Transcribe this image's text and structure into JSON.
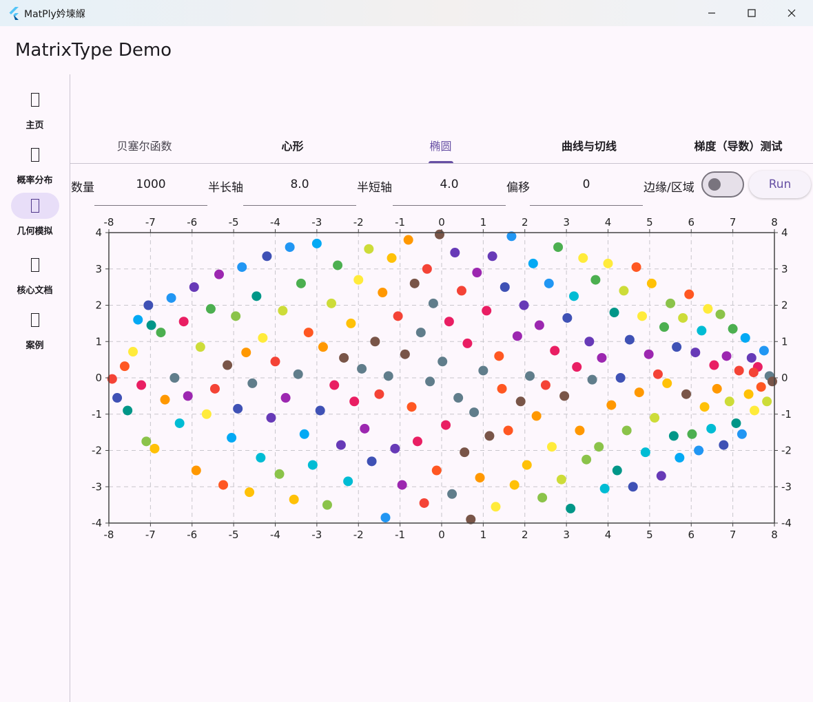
{
  "window": {
    "title": "MatPly妗堜緥",
    "icon": "flutter-logo-icon",
    "controls": [
      "minimize-icon",
      "maximize-icon",
      "close-icon"
    ]
  },
  "app": {
    "title": "MatrixType Demo"
  },
  "rail": {
    "items": [
      {
        "label": "主页",
        "icon": "home-icon",
        "active": false
      },
      {
        "label": "概率分布",
        "icon": "distribution-icon",
        "active": false
      },
      {
        "label": "几何模拟",
        "icon": "geometry-icon",
        "active": true
      },
      {
        "label": "核心文档",
        "icon": "docs-icon",
        "active": false
      },
      {
        "label": "案例",
        "icon": "examples-icon",
        "active": false
      }
    ]
  },
  "tabs": [
    {
      "label": "贝塞尔函数",
      "active": false
    },
    {
      "label": "心形",
      "active": false
    },
    {
      "label": "椭圆",
      "active": true
    },
    {
      "label": "曲线与切线",
      "active": false
    },
    {
      "label": "梯度（导数）测试",
      "active": false
    }
  ],
  "form": {
    "count_label": "数量",
    "count_value": "1000",
    "semi_major_label": "半长轴",
    "semi_major_value": "8.0",
    "semi_minor_label": "半短轴",
    "semi_minor_value": "4.0",
    "offset_label": "偏移",
    "offset_value": "0",
    "edge_label": "边缘/区域",
    "edge_toggle_on": false,
    "run_label": "Run"
  },
  "colors": {
    "accent": "#6750a4",
    "point_palette": [
      "#f44336",
      "#e91e63",
      "#9c27b0",
      "#673ab7",
      "#3f51b5",
      "#2196f3",
      "#03a9f4",
      "#00bcd4",
      "#009688",
      "#4caf50",
      "#8bc34a",
      "#cddc39",
      "#ffeb3b",
      "#ffc107",
      "#ff9800",
      "#ff5722",
      "#795548",
      "#607d8b"
    ]
  },
  "chart_data": {
    "type": "scatter",
    "xlim": [
      -8,
      8
    ],
    "ylim": [
      -4,
      4
    ],
    "x_ticks": [
      -8,
      -7,
      -6,
      -5,
      -4,
      -3,
      -2,
      -1,
      0,
      1,
      2,
      3,
      4,
      5,
      6,
      7,
      8
    ],
    "y_ticks": [
      4,
      3,
      2,
      1,
      0,
      -1,
      -2,
      -3,
      -4
    ],
    "grid": true,
    "grid_style": "dashed",
    "point_count": 1000,
    "shape": "filled ellipse, semi-axes 8 and 4, centered at origin",
    "points": [
      {
        "x": -7.92,
        "y": -0.03,
        "c": "#f44336"
      },
      {
        "x": -7.8,
        "y": -0.55,
        "c": "#3f51b5"
      },
      {
        "x": -7.62,
        "y": 0.32,
        "c": "#ff5722"
      },
      {
        "x": -7.55,
        "y": -0.9,
        "c": "#009688"
      },
      {
        "x": -7.42,
        "y": 0.72,
        "c": "#ffeb3b"
      },
      {
        "x": -7.3,
        "y": 1.6,
        "c": "#03a9f4"
      },
      {
        "x": -7.22,
        "y": -0.2,
        "c": "#e91e63"
      },
      {
        "x": -7.1,
        "y": -1.75,
        "c": "#8bc34a"
      },
      {
        "x": -7.05,
        "y": 2.0,
        "c": "#3f51b5"
      },
      {
        "x": -6.98,
        "y": 1.45,
        "c": "#009688"
      },
      {
        "x": -6.9,
        "y": -1.95,
        "c": "#ffc107"
      },
      {
        "x": -6.75,
        "y": 1.25,
        "c": "#4caf50"
      },
      {
        "x": -6.65,
        "y": -0.6,
        "c": "#ff9800"
      },
      {
        "x": -6.5,
        "y": 2.2,
        "c": "#2196f3"
      },
      {
        "x": -6.42,
        "y": 0.0,
        "c": "#607d8b"
      },
      {
        "x": -6.3,
        "y": -1.25,
        "c": "#00bcd4"
      },
      {
        "x": -6.2,
        "y": 1.55,
        "c": "#e91e63"
      },
      {
        "x": -6.1,
        "y": -0.5,
        "c": "#9c27b0"
      },
      {
        "x": -5.95,
        "y": 2.5,
        "c": "#673ab7"
      },
      {
        "x": -5.9,
        "y": -2.55,
        "c": "#ff9800"
      },
      {
        "x": -5.8,
        "y": 0.85,
        "c": "#cddc39"
      },
      {
        "x": -5.65,
        "y": -1.0,
        "c": "#ffeb3b"
      },
      {
        "x": -5.55,
        "y": 1.9,
        "c": "#4caf50"
      },
      {
        "x": -5.45,
        "y": -0.3,
        "c": "#f44336"
      },
      {
        "x": -5.35,
        "y": 2.85,
        "c": "#9c27b0"
      },
      {
        "x": -5.25,
        "y": -2.95,
        "c": "#ff5722"
      },
      {
        "x": -5.15,
        "y": 0.35,
        "c": "#795548"
      },
      {
        "x": -5.05,
        "y": -1.65,
        "c": "#03a9f4"
      },
      {
        "x": -4.95,
        "y": 1.7,
        "c": "#8bc34a"
      },
      {
        "x": -4.9,
        "y": -0.85,
        "c": "#3f51b5"
      },
      {
        "x": -4.8,
        "y": 3.05,
        "c": "#2196f3"
      },
      {
        "x": -4.7,
        "y": 0.7,
        "c": "#ff9800"
      },
      {
        "x": -4.62,
        "y": -3.15,
        "c": "#ffc107"
      },
      {
        "x": -4.55,
        "y": -0.15,
        "c": "#607d8b"
      },
      {
        "x": -4.45,
        "y": 2.25,
        "c": "#009688"
      },
      {
        "x": -4.35,
        "y": -2.2,
        "c": "#00bcd4"
      },
      {
        "x": -4.3,
        "y": 1.1,
        "c": "#ffeb3b"
      },
      {
        "x": -4.2,
        "y": 3.35,
        "c": "#3f51b5"
      },
      {
        "x": -4.1,
        "y": -1.1,
        "c": "#673ab7"
      },
      {
        "x": -4.0,
        "y": 0.45,
        "c": "#f44336"
      },
      {
        "x": -3.9,
        "y": -2.65,
        "c": "#8bc34a"
      },
      {
        "x": -3.82,
        "y": 1.85,
        "c": "#cddc39"
      },
      {
        "x": -3.75,
        "y": -0.55,
        "c": "#9c27b0"
      },
      {
        "x": -3.65,
        "y": 3.6,
        "c": "#2196f3"
      },
      {
        "x": -3.55,
        "y": -3.35,
        "c": "#ffc107"
      },
      {
        "x": -3.45,
        "y": 0.1,
        "c": "#607d8b"
      },
      {
        "x": -3.38,
        "y": 2.6,
        "c": "#4caf50"
      },
      {
        "x": -3.3,
        "y": -1.55,
        "c": "#03a9f4"
      },
      {
        "x": -3.2,
        "y": 1.25,
        "c": "#ff5722"
      },
      {
        "x": -3.1,
        "y": -2.4,
        "c": "#00bcd4"
      },
      {
        "x": -3.0,
        "y": 3.7,
        "c": "#03a9f4"
      },
      {
        "x": -2.92,
        "y": -0.9,
        "c": "#3f51b5"
      },
      {
        "x": -2.85,
        "y": 0.85,
        "c": "#ff9800"
      },
      {
        "x": -2.75,
        "y": -3.5,
        "c": "#8bc34a"
      },
      {
        "x": -2.65,
        "y": 2.05,
        "c": "#cddc39"
      },
      {
        "x": -2.58,
        "y": -0.2,
        "c": "#e91e63"
      },
      {
        "x": -2.5,
        "y": 3.1,
        "c": "#4caf50"
      },
      {
        "x": -2.42,
        "y": -1.85,
        "c": "#673ab7"
      },
      {
        "x": -2.35,
        "y": 0.55,
        "c": "#795548"
      },
      {
        "x": -2.25,
        "y": -2.85,
        "c": "#00bcd4"
      },
      {
        "x": -2.18,
        "y": 1.5,
        "c": "#ffc107"
      },
      {
        "x": -2.1,
        "y": -0.65,
        "c": "#e91e63"
      },
      {
        "x": -2.0,
        "y": 2.7,
        "c": "#ffeb3b"
      },
      {
        "x": -1.92,
        "y": 0.25,
        "c": "#607d8b"
      },
      {
        "x": -1.85,
        "y": -1.4,
        "c": "#9c27b0"
      },
      {
        "x": -1.75,
        "y": 3.55,
        "c": "#cddc39"
      },
      {
        "x": -1.68,
        "y": -2.3,
        "c": "#3f51b5"
      },
      {
        "x": -1.6,
        "y": 1.0,
        "c": "#795548"
      },
      {
        "x": -1.5,
        "y": -0.45,
        "c": "#f44336"
      },
      {
        "x": -1.42,
        "y": 2.35,
        "c": "#ff9800"
      },
      {
        "x": -1.35,
        "y": -3.85,
        "c": "#2196f3"
      },
      {
        "x": -1.28,
        "y": 0.05,
        "c": "#607d8b"
      },
      {
        "x": -1.2,
        "y": 3.3,
        "c": "#ffc107"
      },
      {
        "x": -1.12,
        "y": -1.95,
        "c": "#673ab7"
      },
      {
        "x": -1.05,
        "y": 1.7,
        "c": "#f44336"
      },
      {
        "x": -0.95,
        "y": -2.95,
        "c": "#9c27b0"
      },
      {
        "x": -0.88,
        "y": 0.65,
        "c": "#795548"
      },
      {
        "x": -0.8,
        "y": 3.8,
        "c": "#ff9800"
      },
      {
        "x": -0.72,
        "y": -0.8,
        "c": "#ff5722"
      },
      {
        "x": -0.65,
        "y": 2.6,
        "c": "#795548"
      },
      {
        "x": -0.58,
        "y": -1.75,
        "c": "#e91e63"
      },
      {
        "x": -0.5,
        "y": 1.25,
        "c": "#607d8b"
      },
      {
        "x": -0.42,
        "y": -3.45,
        "c": "#f44336"
      },
      {
        "x": -0.35,
        "y": 3.0,
        "c": "#f44336"
      },
      {
        "x": -0.28,
        "y": -0.1,
        "c": "#607d8b"
      },
      {
        "x": -0.2,
        "y": 2.05,
        "c": "#607d8b"
      },
      {
        "x": -0.12,
        "y": -2.55,
        "c": "#ff5722"
      },
      {
        "x": -0.05,
        "y": 3.95,
        "c": "#795548"
      },
      {
        "x": 0.02,
        "y": 0.45,
        "c": "#607d8b"
      },
      {
        "x": 0.1,
        "y": -1.3,
        "c": "#e91e63"
      },
      {
        "x": 0.18,
        "y": 1.55,
        "c": "#e91e63"
      },
      {
        "x": 0.25,
        "y": -3.2,
        "c": "#607d8b"
      },
      {
        "x": 0.32,
        "y": 3.45,
        "c": "#673ab7"
      },
      {
        "x": 0.4,
        "y": -0.55,
        "c": "#607d8b"
      },
      {
        "x": 0.48,
        "y": 2.4,
        "c": "#f44336"
      },
      {
        "x": 0.55,
        "y": -2.05,
        "c": "#795548"
      },
      {
        "x": 0.62,
        "y": 0.95,
        "c": "#e91e63"
      },
      {
        "x": 0.7,
        "y": -3.9,
        "c": "#795548"
      },
      {
        "x": 0.78,
        "y": -0.95,
        "c": "#607d8b"
      },
      {
        "x": 0.85,
        "y": 2.9,
        "c": "#9c27b0"
      },
      {
        "x": 0.92,
        "y": -2.75,
        "c": "#ff9800"
      },
      {
        "x": 1.0,
        "y": 0.2,
        "c": "#607d8b"
      },
      {
        "x": 1.08,
        "y": 1.85,
        "c": "#e91e63"
      },
      {
        "x": 1.15,
        "y": -1.6,
        "c": "#795548"
      },
      {
        "x": 1.22,
        "y": 3.35,
        "c": "#673ab7"
      },
      {
        "x": 1.3,
        "y": -3.55,
        "c": "#ffeb3b"
      },
      {
        "x": 1.38,
        "y": 0.6,
        "c": "#ff5722"
      },
      {
        "x": 1.45,
        "y": -0.3,
        "c": "#ff5722"
      },
      {
        "x": 1.52,
        "y": 2.5,
        "c": "#3f51b5"
      },
      {
        "x": 1.6,
        "y": -1.45,
        "c": "#ff5722"
      },
      {
        "x": 1.68,
        "y": 3.9,
        "c": "#2196f3"
      },
      {
        "x": 1.75,
        "y": -2.95,
        "c": "#ffc107"
      },
      {
        "x": 1.82,
        "y": 1.15,
        "c": "#9c27b0"
      },
      {
        "x": 1.9,
        "y": -0.65,
        "c": "#795548"
      },
      {
        "x": 1.98,
        "y": 2.0,
        "c": "#673ab7"
      },
      {
        "x": 2.05,
        "y": -2.4,
        "c": "#ffc107"
      },
      {
        "x": 2.12,
        "y": 0.05,
        "c": "#607d8b"
      },
      {
        "x": 2.2,
        "y": 3.15,
        "c": "#03a9f4"
      },
      {
        "x": 2.28,
        "y": -1.05,
        "c": "#ff9800"
      },
      {
        "x": 2.35,
        "y": 1.45,
        "c": "#9c27b0"
      },
      {
        "x": 2.42,
        "y": -3.3,
        "c": "#8bc34a"
      },
      {
        "x": 2.5,
        "y": -0.2,
        "c": "#f44336"
      },
      {
        "x": 2.58,
        "y": 2.6,
        "c": "#2196f3"
      },
      {
        "x": 2.65,
        "y": -1.9,
        "c": "#ffeb3b"
      },
      {
        "x": 2.72,
        "y": 0.75,
        "c": "#e91e63"
      },
      {
        "x": 2.8,
        "y": 3.6,
        "c": "#4caf50"
      },
      {
        "x": 2.88,
        "y": -2.8,
        "c": "#cddc39"
      },
      {
        "x": 2.95,
        "y": -0.5,
        "c": "#795548"
      },
      {
        "x": 3.02,
        "y": 1.65,
        "c": "#3f51b5"
      },
      {
        "x": 3.1,
        "y": -3.6,
        "c": "#009688"
      },
      {
        "x": 3.18,
        "y": 2.25,
        "c": "#00bcd4"
      },
      {
        "x": 3.25,
        "y": 0.3,
        "c": "#e91e63"
      },
      {
        "x": 3.32,
        "y": -1.45,
        "c": "#ff9800"
      },
      {
        "x": 3.4,
        "y": 3.3,
        "c": "#ffeb3b"
      },
      {
        "x": 3.48,
        "y": -2.25,
        "c": "#8bc34a"
      },
      {
        "x": 3.55,
        "y": 1.0,
        "c": "#673ab7"
      },
      {
        "x": 3.62,
        "y": -0.05,
        "c": "#607d8b"
      },
      {
        "x": 3.7,
        "y": 2.7,
        "c": "#4caf50"
      },
      {
        "x": 3.78,
        "y": -1.9,
        "c": "#8bc34a"
      },
      {
        "x": 3.85,
        "y": 0.55,
        "c": "#9c27b0"
      },
      {
        "x": 3.92,
        "y": -3.05,
        "c": "#00bcd4"
      },
      {
        "x": 4.0,
        "y": 3.15,
        "c": "#ffeb3b"
      },
      {
        "x": 4.08,
        "y": -0.75,
        "c": "#ff9800"
      },
      {
        "x": 4.15,
        "y": 1.8,
        "c": "#009688"
      },
      {
        "x": 4.22,
        "y": -2.55,
        "c": "#009688"
      },
      {
        "x": 4.3,
        "y": 0.0,
        "c": "#3f51b5"
      },
      {
        "x": 4.38,
        "y": 2.4,
        "c": "#cddc39"
      },
      {
        "x": 4.45,
        "y": -1.45,
        "c": "#8bc34a"
      },
      {
        "x": 4.52,
        "y": 1.05,
        "c": "#3f51b5"
      },
      {
        "x": 4.6,
        "y": -3.0,
        "c": "#3f51b5"
      },
      {
        "x": 4.68,
        "y": 3.05,
        "c": "#ff5722"
      },
      {
        "x": 4.75,
        "y": -0.4,
        "c": "#ff9800"
      },
      {
        "x": 4.82,
        "y": 1.7,
        "c": "#ffeb3b"
      },
      {
        "x": 4.9,
        "y": -2.05,
        "c": "#00bcd4"
      },
      {
        "x": 4.98,
        "y": 0.65,
        "c": "#9c27b0"
      },
      {
        "x": 5.05,
        "y": 2.6,
        "c": "#ffc107"
      },
      {
        "x": 5.12,
        "y": -1.1,
        "c": "#cddc39"
      },
      {
        "x": 5.2,
        "y": 0.1,
        "c": "#f44336"
      },
      {
        "x": 5.28,
        "y": -2.7,
        "c": "#673ab7"
      },
      {
        "x": 5.35,
        "y": 1.4,
        "c": "#4caf50"
      },
      {
        "x": 5.42,
        "y": -0.15,
        "c": "#ffc107"
      },
      {
        "x": 5.5,
        "y": 2.05,
        "c": "#8bc34a"
      },
      {
        "x": 5.58,
        "y": -1.6,
        "c": "#009688"
      },
      {
        "x": 5.65,
        "y": 0.85,
        "c": "#3f51b5"
      },
      {
        "x": 5.72,
        "y": -2.2,
        "c": "#03a9f4"
      },
      {
        "x": 5.8,
        "y": 1.65,
        "c": "#cddc39"
      },
      {
        "x": 5.88,
        "y": -0.45,
        "c": "#795548"
      },
      {
        "x": 5.95,
        "y": 2.3,
        "c": "#ff5722"
      },
      {
        "x": 6.02,
        "y": -1.55,
        "c": "#4caf50"
      },
      {
        "x": 6.1,
        "y": 0.7,
        "c": "#673ab7"
      },
      {
        "x": 6.18,
        "y": -2.0,
        "c": "#2196f3"
      },
      {
        "x": 6.25,
        "y": 1.3,
        "c": "#00bcd4"
      },
      {
        "x": 6.32,
        "y": -0.8,
        "c": "#ffc107"
      },
      {
        "x": 6.4,
        "y": 1.9,
        "c": "#ffeb3b"
      },
      {
        "x": 6.48,
        "y": -1.4,
        "c": "#00bcd4"
      },
      {
        "x": 6.55,
        "y": 0.35,
        "c": "#e91e63"
      },
      {
        "x": 6.62,
        "y": -0.3,
        "c": "#ff9800"
      },
      {
        "x": 6.7,
        "y": 1.75,
        "c": "#8bc34a"
      },
      {
        "x": 6.78,
        "y": -1.85,
        "c": "#3f51b5"
      },
      {
        "x": 6.85,
        "y": 0.6,
        "c": "#9c27b0"
      },
      {
        "x": 6.92,
        "y": -0.65,
        "c": "#cddc39"
      },
      {
        "x": 7.0,
        "y": 1.35,
        "c": "#4caf50"
      },
      {
        "x": 7.08,
        "y": -1.25,
        "c": "#009688"
      },
      {
        "x": 7.15,
        "y": 0.2,
        "c": "#f44336"
      },
      {
        "x": 7.22,
        "y": -1.55,
        "c": "#2196f3"
      },
      {
        "x": 7.3,
        "y": 1.1,
        "c": "#03a9f4"
      },
      {
        "x": 7.38,
        "y": -0.45,
        "c": "#ffc107"
      },
      {
        "x": 7.45,
        "y": 0.55,
        "c": "#673ab7"
      },
      {
        "x": 7.52,
        "y": -0.9,
        "c": "#ffeb3b"
      },
      {
        "x": 7.6,
        "y": 0.3,
        "c": "#e91e63"
      },
      {
        "x": 7.68,
        "y": -0.25,
        "c": "#ff5722"
      },
      {
        "x": 7.75,
        "y": 0.75,
        "c": "#2196f3"
      },
      {
        "x": 7.82,
        "y": -0.65,
        "c": "#cddc39"
      },
      {
        "x": 7.88,
        "y": 0.05,
        "c": "#607d8b"
      },
      {
        "x": 7.95,
        "y": -0.1,
        "c": "#795548"
      },
      {
        "x": 7.5,
        "y": 0.15,
        "c": "#f44336"
      }
    ]
  }
}
